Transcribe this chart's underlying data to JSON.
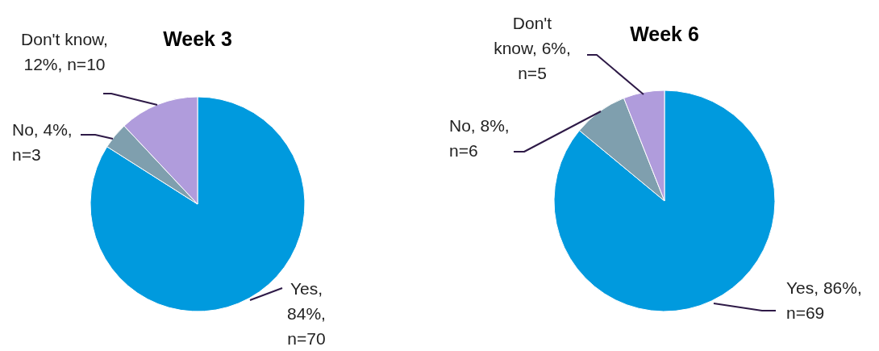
{
  "chart_data": [
    {
      "type": "pie",
      "title": "Week 3",
      "categories": [
        null,
        null,
        null
      ],
      "values": [
        84,
        4,
        12
      ],
      "colors": [
        "#009ade",
        "#7f9fae",
        "#b09cdc"
      ],
      "value_labels": [
        "Yes, 84%, n=70",
        "No, 4%, n=3",
        "Don't know, 12%, n=10"
      ]
    },
    {
      "type": "pie",
      "title": "Week 6",
      "categories": [
        null,
        null,
        null
      ],
      "values": [
        86,
        8,
        6
      ],
      "colors": [
        "#009ade",
        "#7f9fae",
        "#b09cdc"
      ],
      "value_labels": [
        "Yes, 86%, n=69",
        "No, 8%, n=6",
        "Don't know, 6%, n=5"
      ]
    }
  ]
}
